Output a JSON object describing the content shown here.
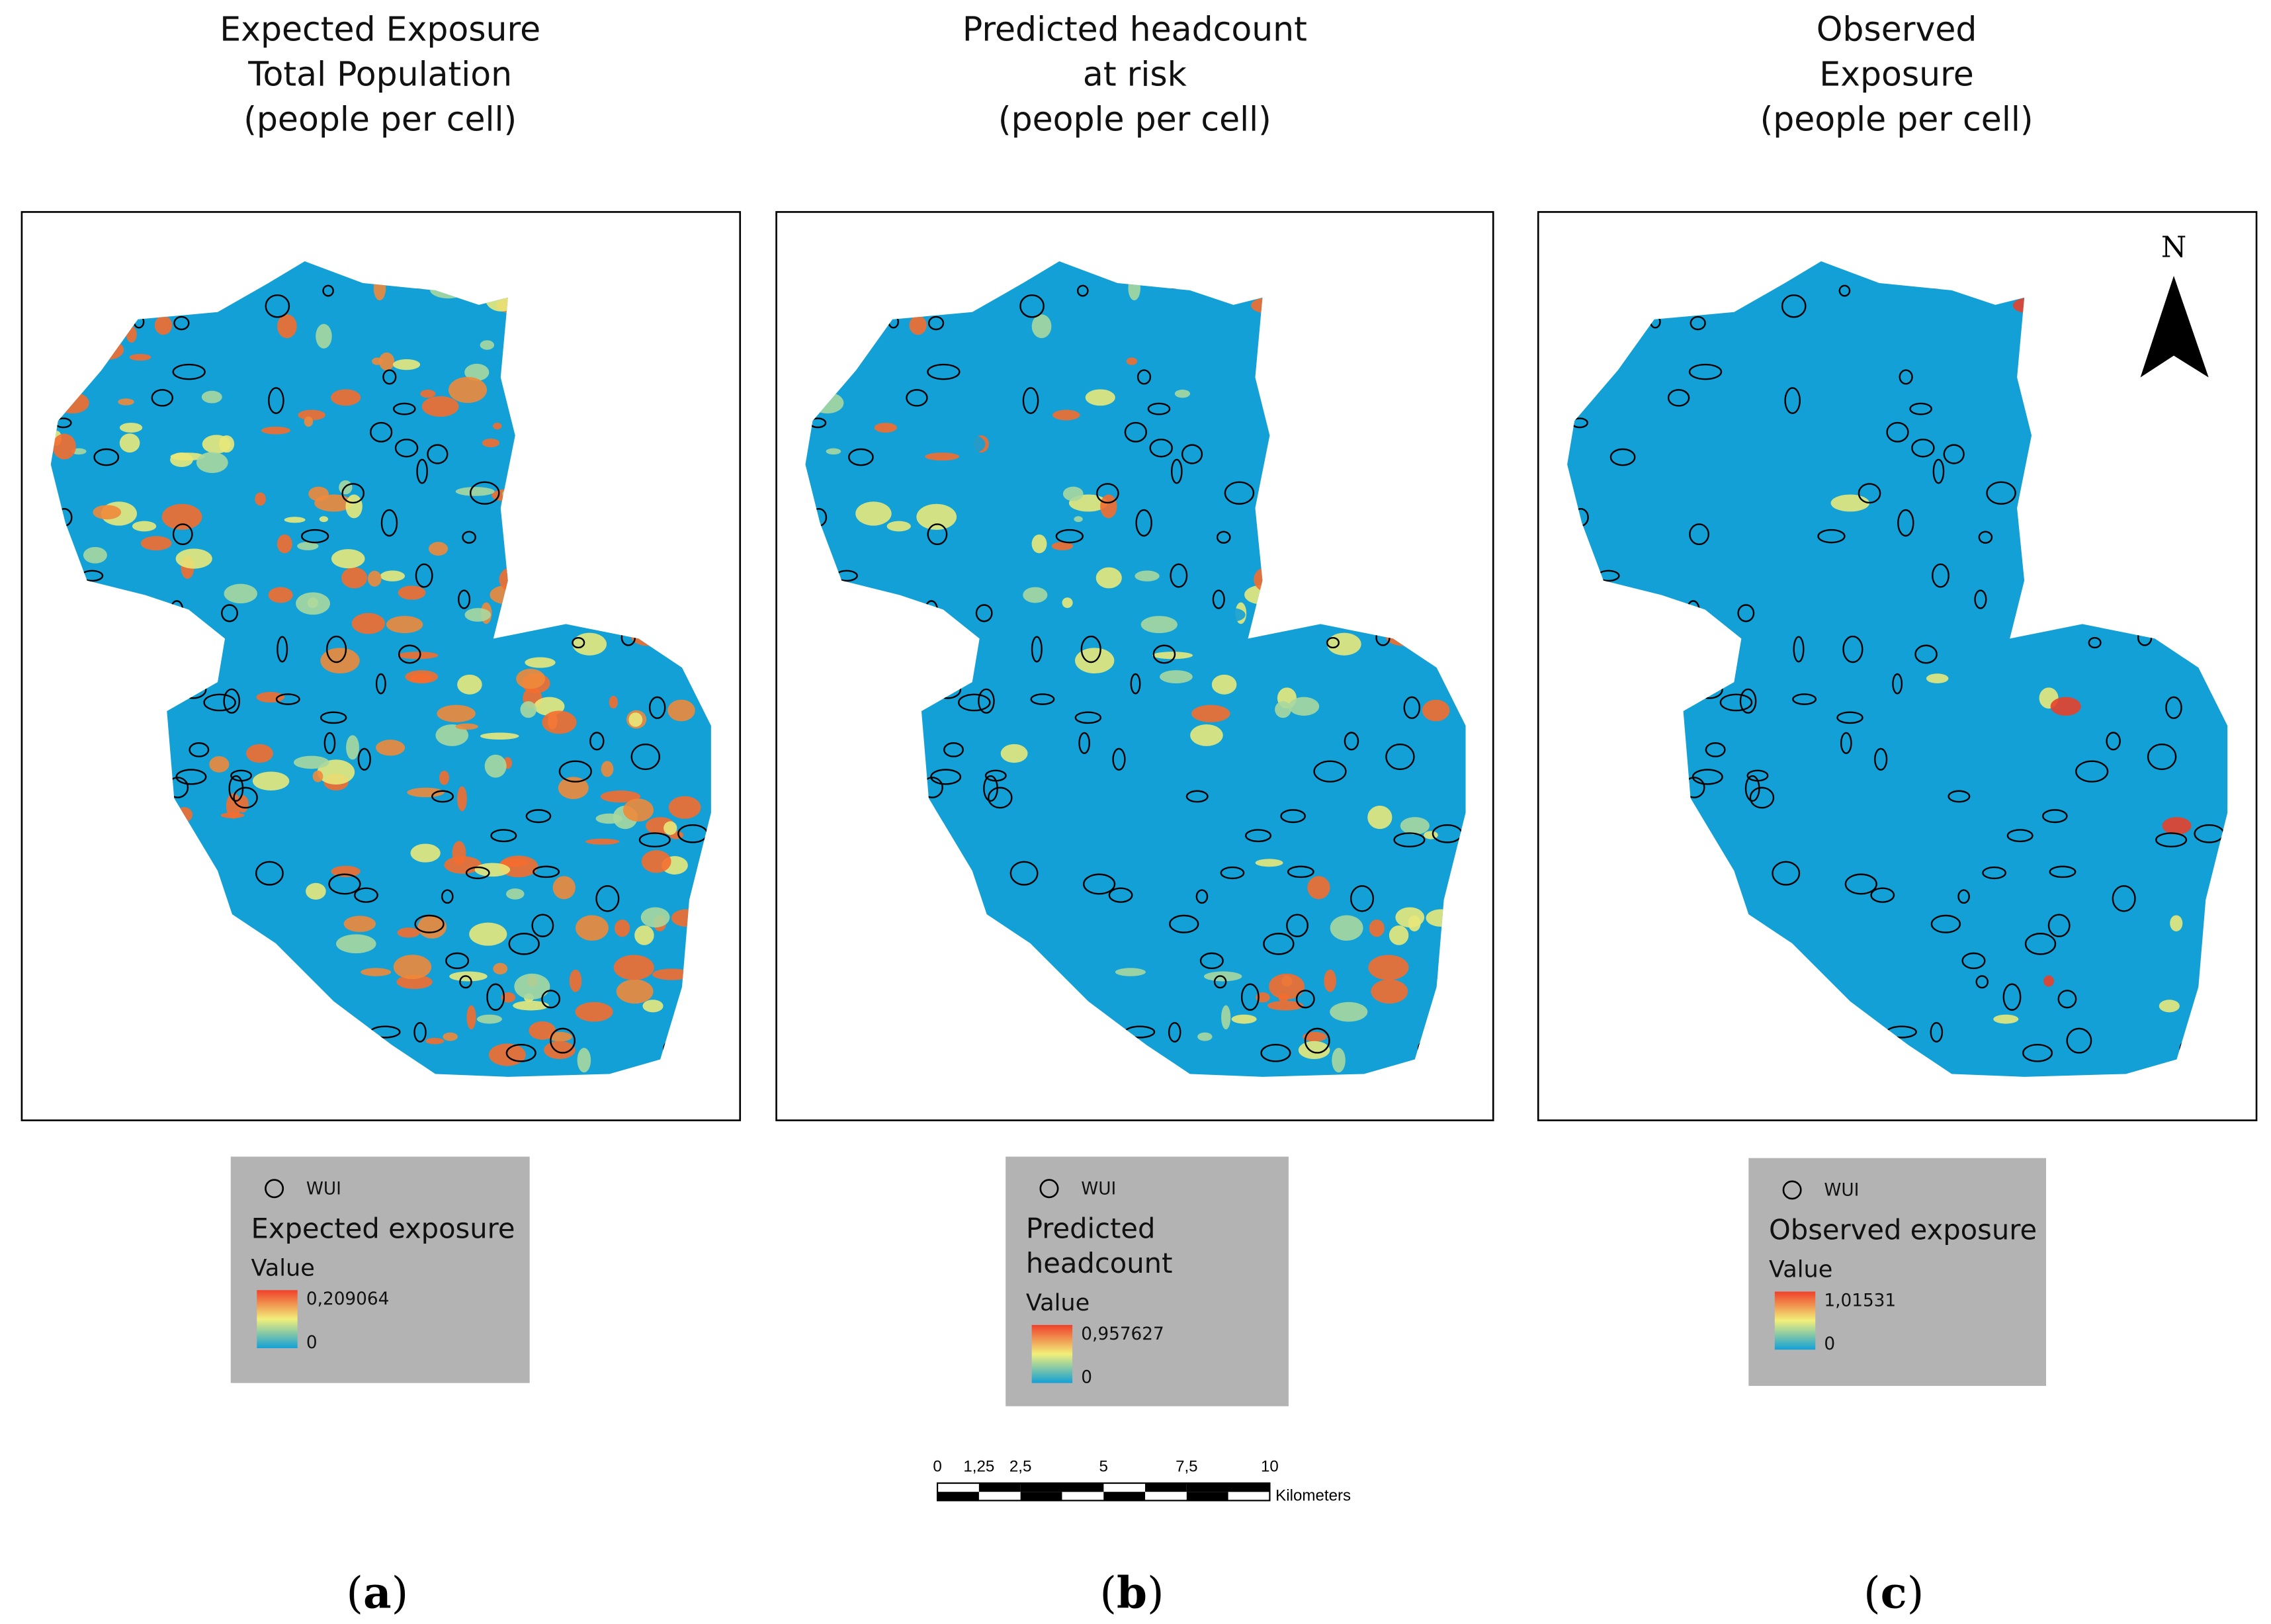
{
  "panels": [
    {
      "title": [
        "Expected Exposure",
        "Total Population",
        "(people per cell)"
      ],
      "legend": {
        "symbol_label": "WUI",
        "title": [
          "Expected exposure"
        ],
        "value_label": "Value",
        "max": "0,209064",
        "min": "0"
      },
      "caption": "a"
    },
    {
      "title": [
        "Predicted headcount",
        "at risk",
        "(people per cell)"
      ],
      "legend": {
        "symbol_label": "WUI",
        "title": [
          "Predicted",
          "headcount"
        ],
        "value_label": "Value",
        "max": "0,957627",
        "min": "0"
      },
      "caption": "b"
    },
    {
      "title": [
        "Observed",
        "Exposure",
        "(people per cell)"
      ],
      "legend": {
        "symbol_label": "WUI",
        "title": [
          "Observed exposure"
        ],
        "value_label": "Value",
        "max": "1,01531",
        "min": "0"
      },
      "caption": "c"
    }
  ],
  "north_arrow": "N",
  "scale_bar": {
    "ticks": [
      "0",
      "1,25",
      "2,5",
      "5",
      "7,5",
      "10"
    ],
    "unit": "Kilometers"
  }
}
